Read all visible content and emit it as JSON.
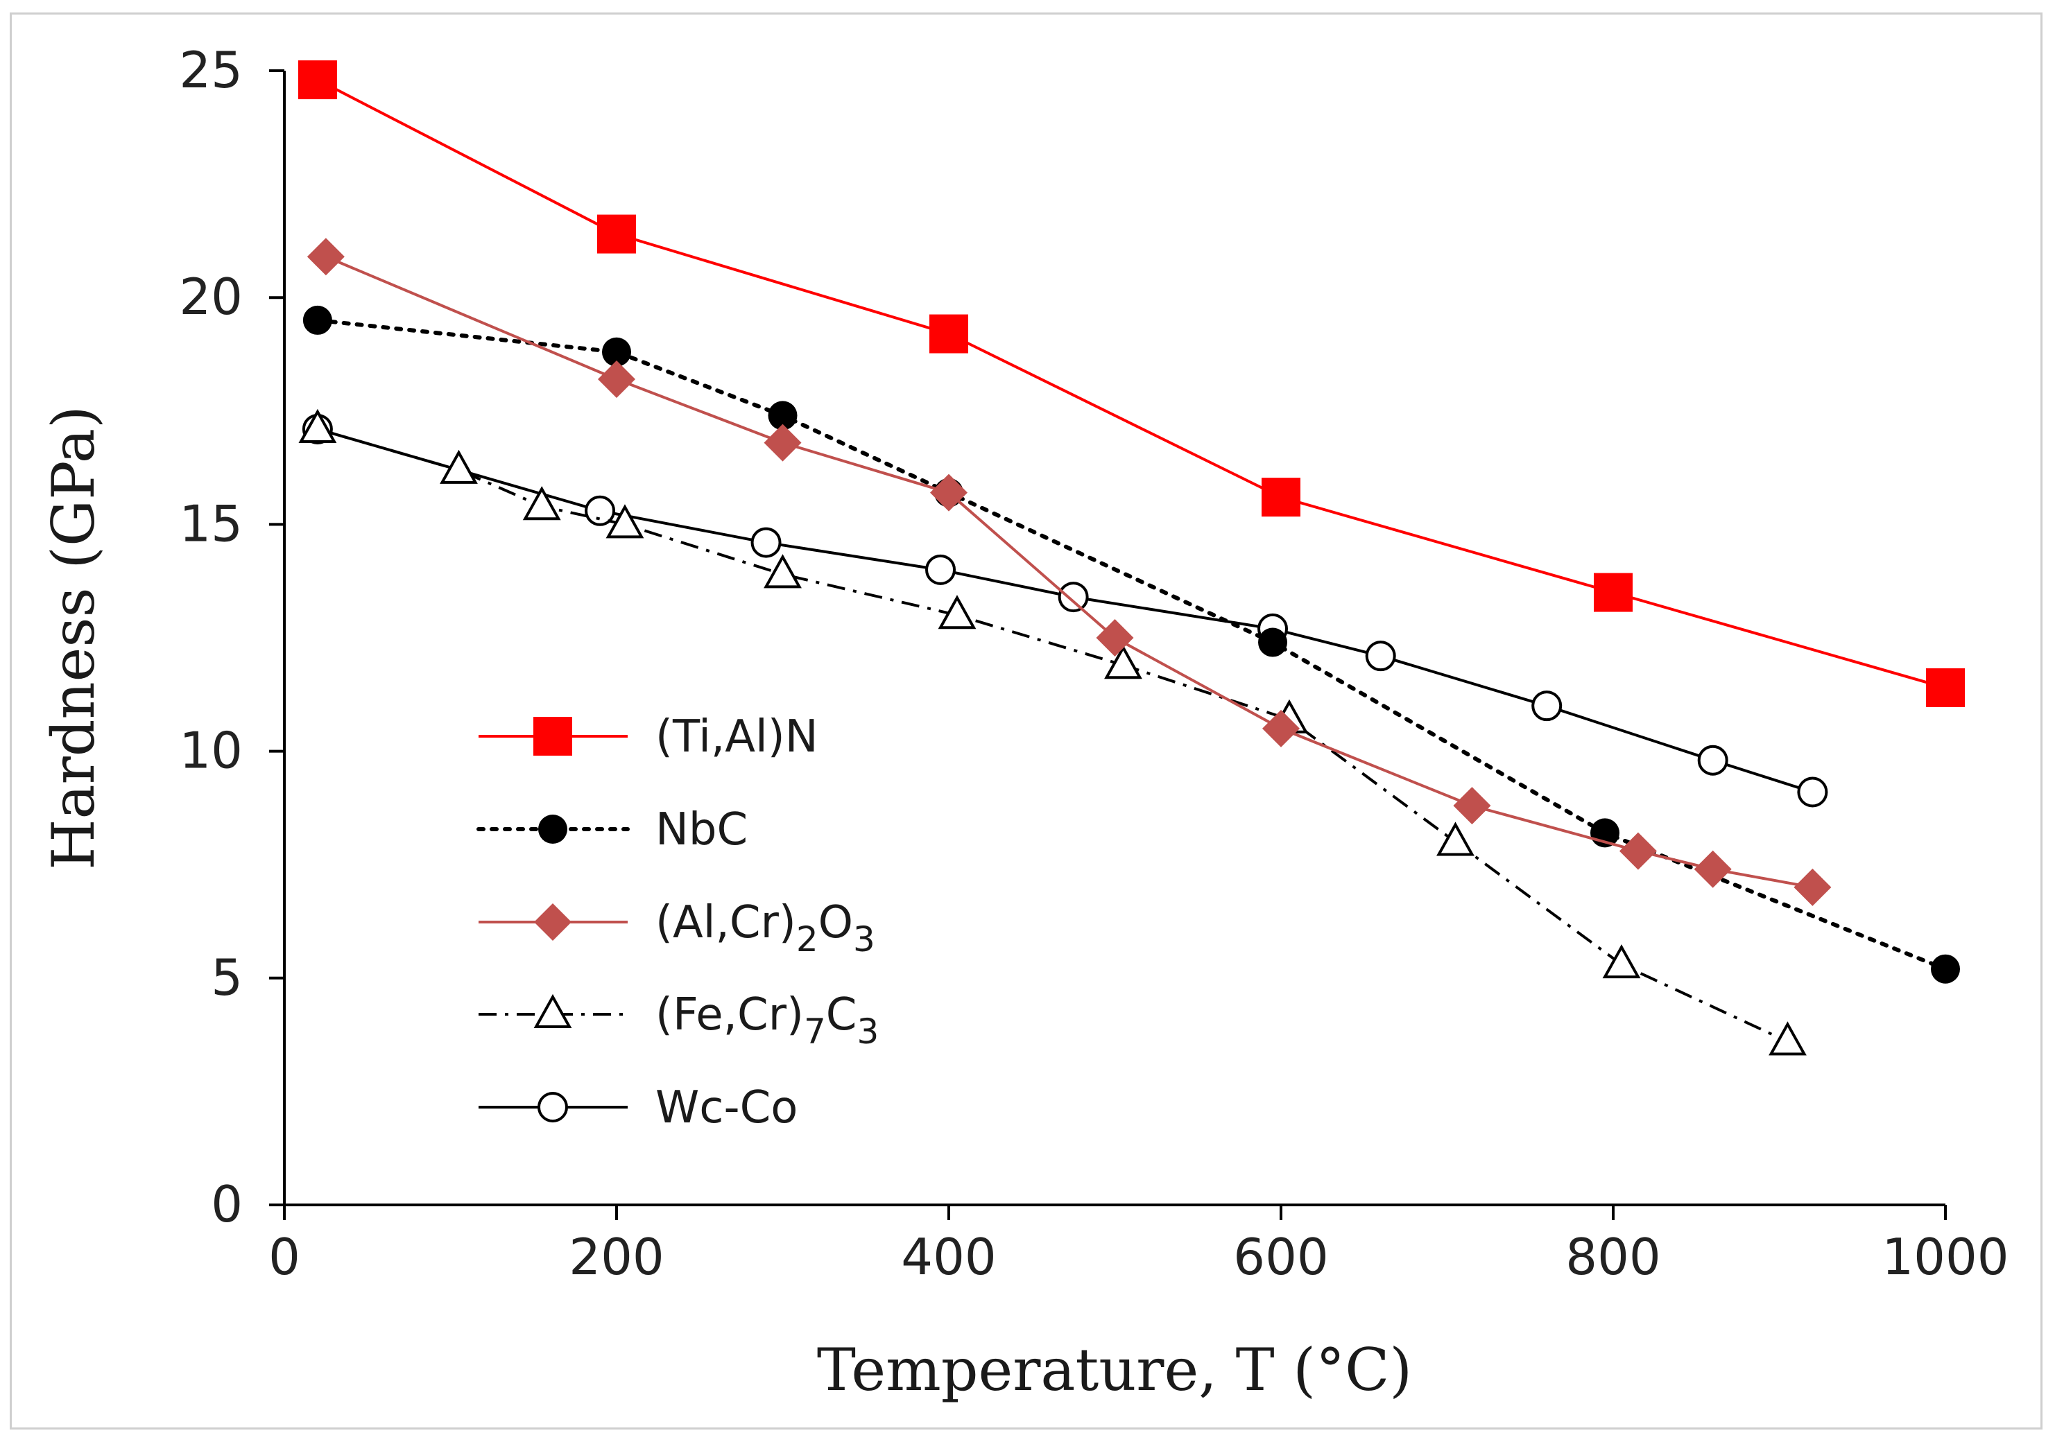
{
  "chart_data": {
    "type": "line",
    "title": "",
    "xlabel": "Temperature, T (°C)",
    "ylabel": "Hardness (GPa)",
    "xlim": [
      0,
      1000
    ],
    "ylim": [
      0,
      25
    ],
    "xticks": [
      "0",
      "200",
      "400",
      "600",
      "800",
      "1000"
    ],
    "yticks": [
      "0",
      "5",
      "10",
      "15",
      "20",
      "25"
    ],
    "grid": false,
    "legend_position": "lower-left",
    "series": [
      {
        "name": "(Ti,Al)N",
        "legend_main": "(Ti,Al)N",
        "legend_sub1": "",
        "legend_mid": "",
        "legend_sub2": "",
        "color": "#ff0000",
        "marker": "square-filled",
        "line": "solid",
        "x": [
          20,
          200,
          400,
          600,
          800,
          1000
        ],
        "y": [
          24.8,
          21.4,
          19.2,
          15.6,
          13.5,
          11.4
        ]
      },
      {
        "name": "NbC",
        "legend_main": "NbC",
        "legend_sub1": "",
        "legend_mid": "",
        "legend_sub2": "",
        "color": "#000000",
        "marker": "circle-filled",
        "line": "dotted",
        "x": [
          20,
          200,
          300,
          400,
          595,
          795,
          1000
        ],
        "y": [
          19.5,
          18.8,
          17.4,
          15.7,
          12.4,
          8.2,
          5.2
        ]
      },
      {
        "name": "(Al,Cr)2O3",
        "legend_main": "(Al,Cr)",
        "legend_sub1": "2",
        "legend_mid": "O",
        "legend_sub2": "3",
        "color": "#c0504d",
        "marker": "diamond-filled",
        "line": "solid",
        "x": [
          25,
          200,
          300,
          400,
          500,
          600,
          715,
          815,
          860,
          920
        ],
        "y": [
          20.9,
          18.2,
          16.8,
          15.7,
          12.5,
          10.5,
          8.8,
          7.8,
          7.4,
          7.0
        ]
      },
      {
        "name": "(Fe,Cr)7C3",
        "legend_main": "(Fe,Cr)",
        "legend_sub1": "7",
        "legend_mid": "C",
        "legend_sub2": "3",
        "color": "#000000",
        "marker": "triangle-open",
        "line": "dashdot",
        "x": [
          20,
          105,
          155,
          205,
          300,
          405,
          505,
          605,
          705,
          805,
          905
        ],
        "y": [
          17.1,
          16.2,
          15.4,
          15.0,
          13.9,
          13.0,
          11.9,
          10.7,
          8.0,
          5.3,
          3.6
        ]
      },
      {
        "name": "Wc-Co",
        "legend_main": "Wc-Co",
        "legend_sub1": "",
        "legend_mid": "",
        "legend_sub2": "",
        "color": "#000000",
        "marker": "circle-open",
        "line": "solid",
        "x": [
          20,
          190,
          290,
          395,
          475,
          595,
          660,
          760,
          860,
          920
        ],
        "y": [
          17.1,
          15.3,
          14.6,
          14.0,
          13.4,
          12.7,
          12.1,
          11.0,
          9.8,
          9.1
        ]
      }
    ]
  }
}
